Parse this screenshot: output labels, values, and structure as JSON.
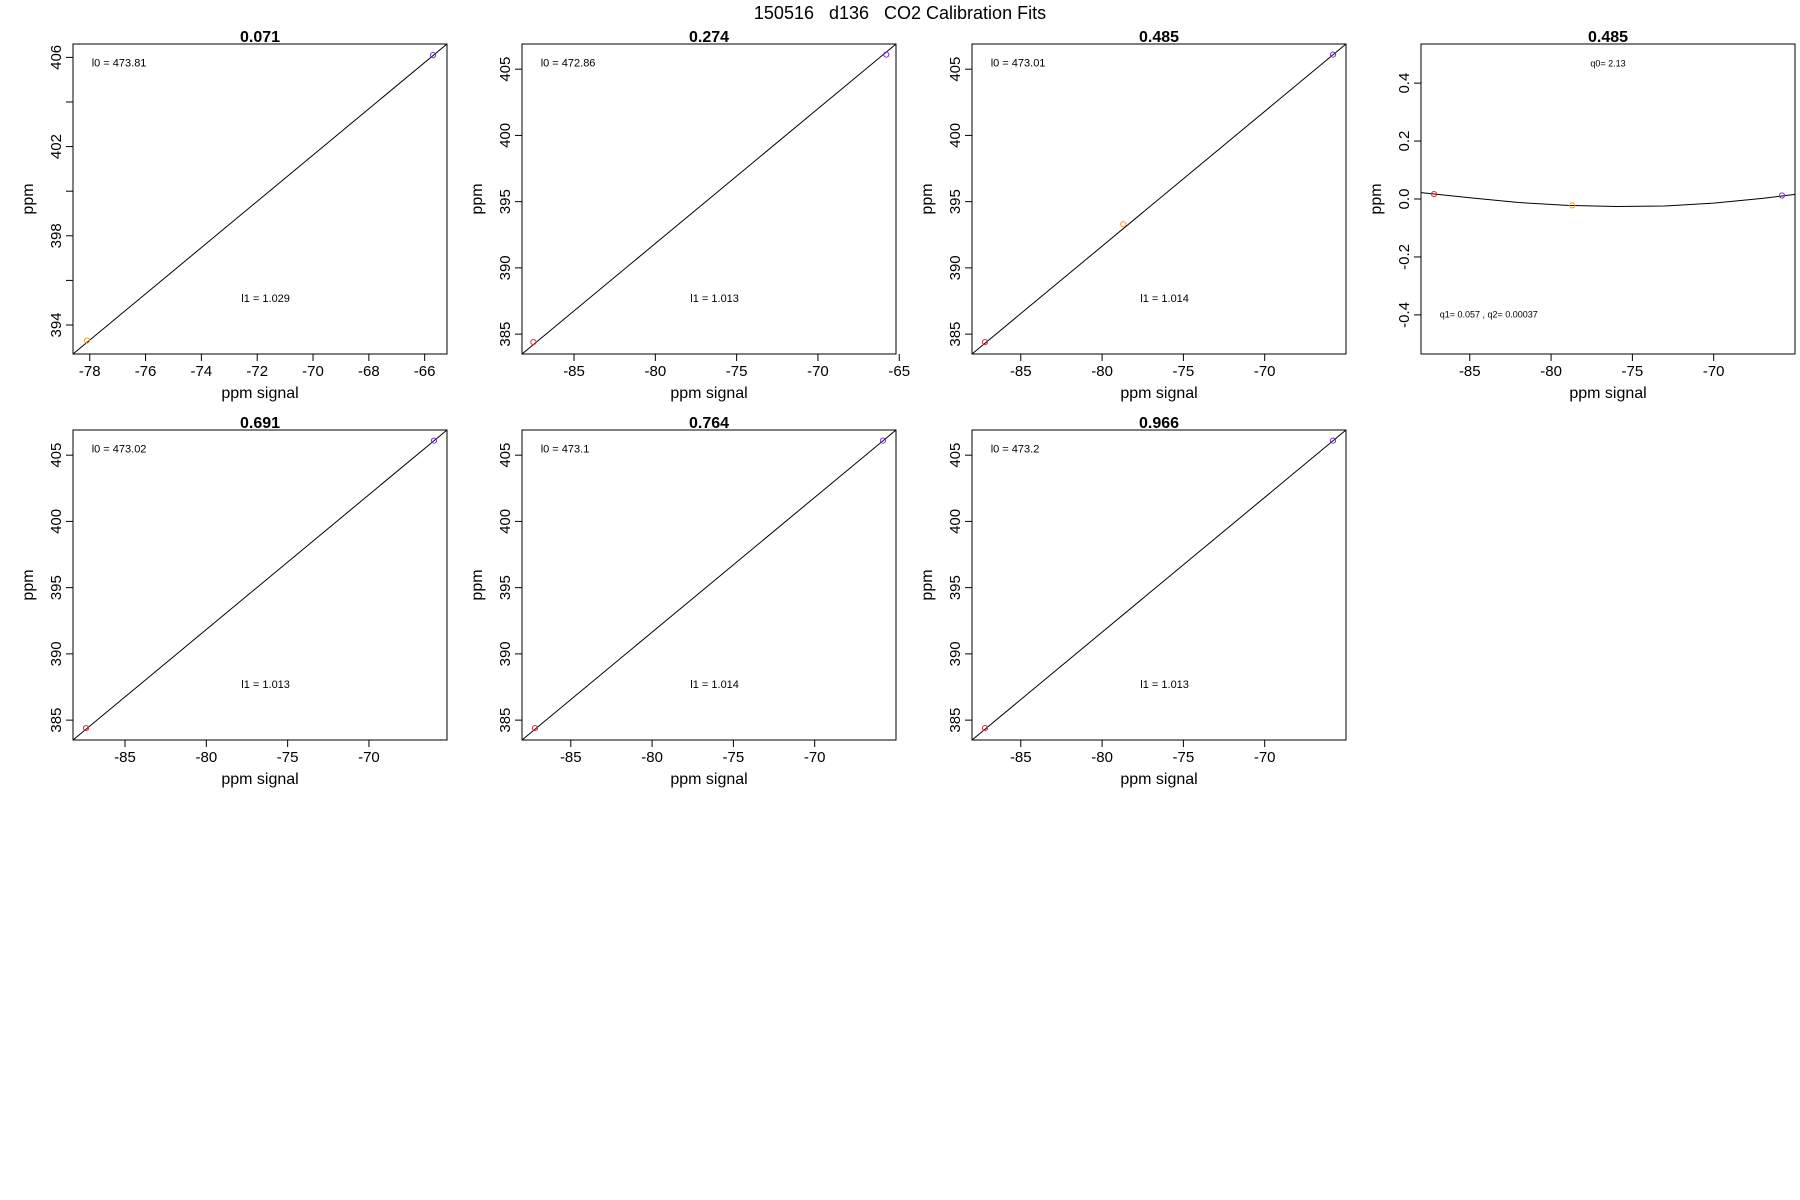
{
  "title": "150516   d136   CO2 Calibration Fits",
  "colors": {
    "low": "#e03030",
    "mid": "#f0a020",
    "high": "#7a30e0",
    "line": "#000000"
  },
  "chart_data": [
    {
      "type": "scatter",
      "title": "0.071",
      "xlabel": "ppm signal",
      "ylabel": "ppm",
      "xlim": [
        -78.6,
        -65.2
      ],
      "ylim": [
        392.7,
        406.6
      ],
      "xticks": [
        "-78",
        "-76",
        "-74",
        "-72",
        "-70",
        "-68",
        "-66"
      ],
      "yticks": [
        "394",
        "398",
        "402",
        "406"
      ],
      "yminor": [
        396,
        400,
        404
      ],
      "points": [
        {
          "x": -78.1,
          "y": 393.3,
          "color": "mid"
        },
        {
          "x": -65.7,
          "y": 406.1,
          "color": "high"
        }
      ],
      "fit": {
        "kind": "line",
        "x": [
          -78.6,
          -65.2
        ],
        "y": [
          392.7,
          406.6
        ]
      },
      "annotations": [
        {
          "text": "l0 =  473.81"
        },
        {
          "text": "l1 =  1.029"
        }
      ]
    },
    {
      "type": "scatter",
      "title": "0.274",
      "xlabel": "ppm signal",
      "ylabel": "ppm",
      "xlim": [
        -88.2,
        -65.2
      ],
      "ylim": [
        383.5,
        406.9
      ],
      "xticks": [
        "-85",
        "-80",
        "-75",
        "-70",
        "-65"
      ],
      "yticks": [
        "385",
        "390",
        "395",
        "400",
        "405"
      ],
      "points": [
        {
          "x": -87.5,
          "y": 384.4,
          "color": "low"
        },
        {
          "x": -65.8,
          "y": 406.1,
          "color": "high"
        }
      ],
      "fit": {
        "kind": "line",
        "x": [
          -88.2,
          -65.2
        ],
        "y": [
          383.5,
          406.9
        ]
      },
      "annotations": [
        {
          "text": "l0 =  472.86"
        },
        {
          "text": "l1 =  1.013"
        }
      ]
    },
    {
      "type": "scatter",
      "title": "0.485",
      "xlabel": "ppm signal",
      "ylabel": "ppm",
      "xlim": [
        -88.0,
        -65.0
      ],
      "ylim": [
        383.5,
        406.9
      ],
      "xticks": [
        "-85",
        "-80",
        "-75",
        "-70"
      ],
      "yticks": [
        "385",
        "390",
        "395",
        "400",
        "405"
      ],
      "points": [
        {
          "x": -87.2,
          "y": 384.4,
          "color": "low"
        },
        {
          "x": -78.7,
          "y": 393.3,
          "color": "mid"
        },
        {
          "x": -65.8,
          "y": 406.1,
          "color": "high"
        }
      ],
      "fit": {
        "kind": "line",
        "x": [
          -88.0,
          -65.0
        ],
        "y": [
          383.5,
          406.9
        ]
      },
      "annotations": [
        {
          "text": "l0 =  473.01"
        },
        {
          "text": "l1 =  1.014"
        }
      ]
    },
    {
      "type": "scatter",
      "title": "0.485",
      "xlabel": "ppm signal",
      "ylabel": "ppm",
      "xlim": [
        -88.0,
        -65.0
      ],
      "ylim": [
        -0.535,
        0.535
      ],
      "xticks": [
        "-85",
        "-80",
        "-75",
        "-70"
      ],
      "yticks": [
        "-0.4",
        "-0.2",
        "0.0",
        "0.2",
        "0.4"
      ],
      "points": [
        {
          "x": -87.2,
          "y": 0.017,
          "color": "low"
        },
        {
          "x": -78.7,
          "y": -0.022,
          "color": "mid"
        },
        {
          "x": -65.8,
          "y": 0.012,
          "color": "high"
        }
      ],
      "fit": {
        "kind": "curve",
        "x": [
          -88.0,
          -85.0,
          -82.0,
          -79.0,
          -76.0,
          -73.0,
          -70.0,
          -67.0,
          -65.0
        ],
        "y": [
          0.022,
          0.004,
          -0.012,
          -0.022,
          -0.026,
          -0.024,
          -0.014,
          0.002,
          0.016
        ]
      },
      "annotations": [
        {
          "text": "q0= 2.13"
        },
        {
          "text": "q1= 0.057 , q2= 0.00037"
        }
      ]
    },
    {
      "type": "scatter",
      "title": "0.691",
      "xlabel": "ppm signal",
      "ylabel": "ppm",
      "xlim": [
        -88.2,
        -65.2
      ],
      "ylim": [
        383.5,
        406.9
      ],
      "xticks": [
        "-85",
        "-80",
        "-75",
        "-70"
      ],
      "yticks": [
        "385",
        "390",
        "395",
        "400",
        "405"
      ],
      "points": [
        {
          "x": -87.4,
          "y": 384.4,
          "color": "low"
        },
        {
          "x": -66.0,
          "y": 406.1,
          "color": "high"
        }
      ],
      "fit": {
        "kind": "line",
        "x": [
          -88.2,
          -65.2
        ],
        "y": [
          383.5,
          406.9
        ]
      },
      "annotations": [
        {
          "text": "l0 =  473.02"
        },
        {
          "text": "l1 =  1.013"
        }
      ]
    },
    {
      "type": "scatter",
      "title": "0.764",
      "xlabel": "ppm signal",
      "ylabel": "ppm",
      "xlim": [
        -88.0,
        -65.0
      ],
      "ylim": [
        383.5,
        406.9
      ],
      "xticks": [
        "-85",
        "-80",
        "-75",
        "-70"
      ],
      "yticks": [
        "385",
        "390",
        "395",
        "400",
        "405"
      ],
      "points": [
        {
          "x": -87.2,
          "y": 384.4,
          "color": "low"
        },
        {
          "x": -65.8,
          "y": 406.1,
          "color": "high"
        }
      ],
      "fit": {
        "kind": "line",
        "x": [
          -88.0,
          -65.0
        ],
        "y": [
          383.5,
          406.9
        ]
      },
      "annotations": [
        {
          "text": "l0 =  473.1"
        },
        {
          "text": "l1 =  1.014"
        }
      ]
    },
    {
      "type": "scatter",
      "title": "0.966",
      "xlabel": "ppm signal",
      "ylabel": "ppm",
      "xlim": [
        -88.0,
        -65.0
      ],
      "ylim": [
        383.5,
        406.9
      ],
      "xticks": [
        "-85",
        "-80",
        "-75",
        "-70"
      ],
      "yticks": [
        "385",
        "390",
        "395",
        "400",
        "405"
      ],
      "points": [
        {
          "x": -87.2,
          "y": 384.4,
          "color": "low"
        },
        {
          "x": -65.8,
          "y": 406.1,
          "color": "high"
        }
      ],
      "fit": {
        "kind": "line",
        "x": [
          -88.0,
          -65.0
        ],
        "y": [
          383.5,
          406.9
        ]
      },
      "annotations": [
        {
          "text": "l0 =  473.2"
        },
        {
          "text": "l1 =  1.013"
        }
      ]
    }
  ]
}
